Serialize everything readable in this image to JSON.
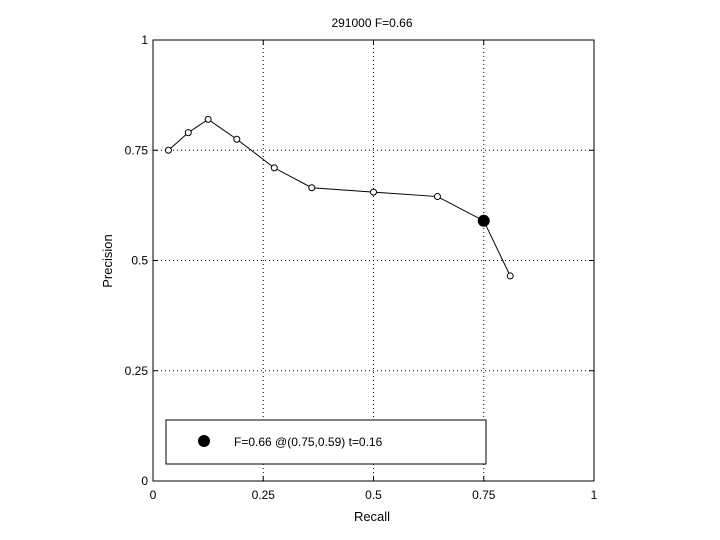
{
  "chart_data": {
    "type": "line",
    "title": "291000 F=0.66",
    "xlabel": "Recall",
    "ylabel": "Precision",
    "xlim": [
      0,
      1
    ],
    "ylim": [
      0,
      1
    ],
    "grid": true,
    "xticks": [
      0,
      0.25,
      0.5,
      0.75,
      1
    ],
    "yticks": [
      0,
      0.25,
      0.5,
      0.75,
      1
    ],
    "xtick_labels": [
      "0",
      "0.25",
      "0.5",
      "0.75",
      "1"
    ],
    "ytick_labels": [
      "0",
      "0.25",
      "0.5",
      "0.75",
      "1"
    ],
    "series": [
      {
        "x": [
          0.035,
          0.08,
          0.125,
          0.19,
          0.275,
          0.36,
          0.5,
          0.645,
          0.81
        ],
        "y": [
          0.75,
          0.79,
          0.82,
          0.775,
          0.71,
          0.665,
          0.655,
          0.645,
          0.465
        ]
      }
    ],
    "highlight": {
      "x": 0.75,
      "y": 0.59
    },
    "legend": {
      "text": "F=0.66 @(0.75,0.59) t=0.16",
      "position": "bottom"
    }
  },
  "colors": {
    "line": "#000000",
    "grid": "#000000",
    "background": "#ffffff"
  }
}
